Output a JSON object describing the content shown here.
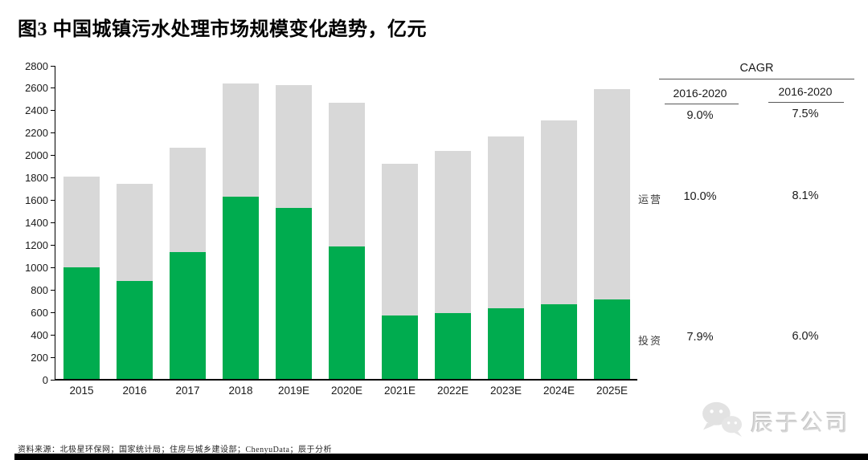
{
  "title": "图3 中国城镇污水处理市场规模变化趋势，亿元",
  "chart_data": {
    "type": "bar",
    "stacked": true,
    "title": "中国城镇污水处理市场规模变化趋势",
    "unit": "亿元",
    "categories": [
      "2015",
      "2016",
      "2017",
      "2018",
      "2019E",
      "2020E",
      "2021E",
      "2022E",
      "2023E",
      "2024E",
      "2025E"
    ],
    "series": [
      {
        "name": "投资",
        "color": "#00AC4F",
        "values": [
          1000,
          880,
          1140,
          1630,
          1530,
          1190,
          570,
          595,
          635,
          670,
          715
        ]
      },
      {
        "name": "运营",
        "color": "#D8D8D8",
        "values": [
          810,
          870,
          930,
          1010,
          1100,
          1280,
          1360,
          1445,
          1535,
          1640,
          1875
        ]
      }
    ],
    "totals": [
      1810,
      1750,
      2070,
      2640,
      2630,
      2470,
      1930,
      2040,
      2170,
      2310,
      2590
    ],
    "ylim": [
      0,
      2800
    ],
    "ytick_step": 200,
    "grid": false,
    "legend_position": "none"
  },
  "cagr": {
    "title": "CAGR",
    "columns": [
      "2016-2020",
      "2016-2020"
    ],
    "total": [
      "9.0%",
      "7.5%"
    ],
    "rows": [
      {
        "label": "运营",
        "values": [
          "10.0%",
          "8.1%"
        ]
      },
      {
        "label": "投资",
        "values": [
          "7.9%",
          "6.0%"
        ]
      }
    ]
  },
  "source": "资料来源：北极星环保网；国家统计局；住房与城乡建设部；ChenyuData；辰于分析",
  "watermark": {
    "icon": "chat-bubbles-icon",
    "text": "辰于公司"
  },
  "colors": {
    "invest": "#00AC4F",
    "operate": "#D8D8D8",
    "axis": "#000000",
    "table_line": "#595959"
  }
}
